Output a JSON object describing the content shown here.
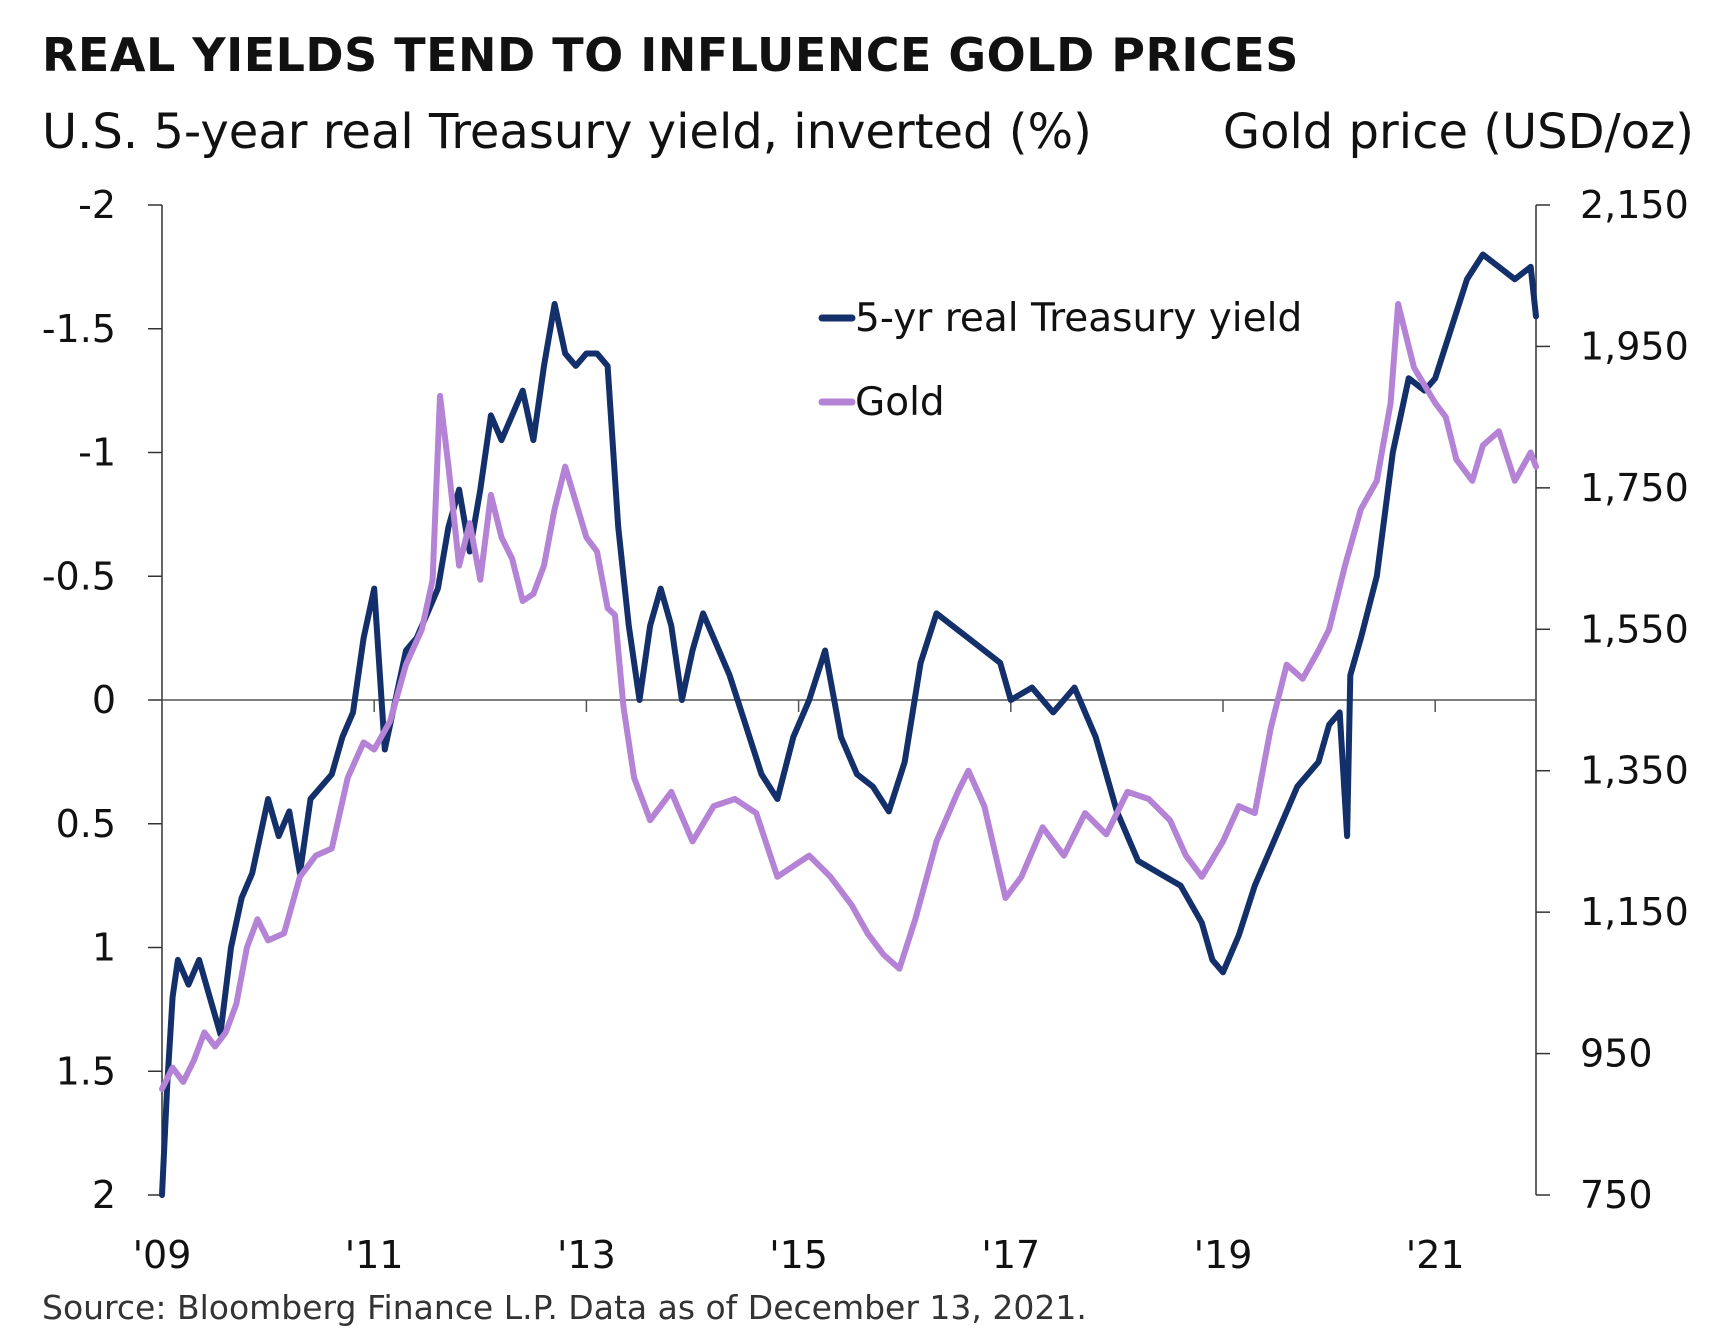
{
  "title": "REAL YIELDS TEND TO INFLUENCE GOLD PRICES",
  "left_axis_title": "U.S. 5-year real Treasury yield, inverted (%)",
  "right_axis_title": "Gold price (USD/oz)",
  "source": "Source: Bloomberg Finance L.P. Data as of December 13, 2021.",
  "colors": {
    "yield": "#14306b",
    "gold": "#b583d6",
    "axis": "#333333",
    "zero_line": "#555555"
  },
  "chart_data": {
    "type": "line",
    "title": "REAL YIELDS TEND TO INFLUENCE GOLD PRICES",
    "x_tick_labels": [
      "'09",
      "'11",
      "'13",
      "'15",
      "'17",
      "'19",
      "'21"
    ],
    "x_ticks": [
      2009,
      2011,
      2013,
      2015,
      2017,
      2019,
      2021
    ],
    "xlim": [
      2009.0,
      2021.95
    ],
    "left_axis": {
      "label": "U.S. 5-year real Treasury yield, inverted (%)",
      "inverted": true,
      "ylim": [
        -2,
        2
      ],
      "ticks": [
        -2,
        -1.5,
        -1,
        -0.5,
        0,
        0.5,
        1,
        1.5,
        2
      ],
      "tick_labels": [
        "-2",
        "-1.5",
        "-1",
        "-0.5",
        "0",
        "0.5",
        "1",
        "1.5",
        "2"
      ]
    },
    "right_axis": {
      "label": "Gold price (USD/oz)",
      "ylim": [
        750,
        2150
      ],
      "ticks": [
        2150,
        1950,
        1750,
        1550,
        1350,
        1150,
        950,
        750
      ],
      "tick_labels": [
        "2,150",
        "1,950",
        "1,750",
        "1,550",
        "1,350",
        "1,150",
        "950",
        "750"
      ]
    },
    "legend": {
      "placement": "top-center"
    },
    "grid": false,
    "series": [
      {
        "name": "5-yr real Treasury yield",
        "axis": "left",
        "x": [
          2009.0,
          2009.05,
          2009.1,
          2009.15,
          2009.25,
          2009.35,
          2009.45,
          2009.55,
          2009.65,
          2009.75,
          2009.85,
          2010.0,
          2010.1,
          2010.2,
          2010.3,
          2010.4,
          2010.5,
          2010.6,
          2010.7,
          2010.8,
          2010.9,
          2011.0,
          2011.1,
          2011.2,
          2011.3,
          2011.4,
          2011.5,
          2011.6,
          2011.7,
          2011.8,
          2011.9,
          2012.0,
          2012.1,
          2012.2,
          2012.3,
          2012.4,
          2012.5,
          2012.6,
          2012.7,
          2012.8,
          2012.9,
          2013.0,
          2013.1,
          2013.2,
          2013.3,
          2013.4,
          2013.5,
          2013.6,
          2013.7,
          2013.8,
          2013.9,
          2014.0,
          2014.1,
          2014.2,
          2014.35,
          2014.5,
          2014.65,
          2014.8,
          2014.95,
          2015.0,
          2015.1,
          2015.25,
          2015.4,
          2015.55,
          2015.7,
          2015.85,
          2016.0,
          2016.15,
          2016.3,
          2016.45,
          2016.6,
          2016.75,
          2016.9,
          2017.0,
          2017.2,
          2017.4,
          2017.6,
          2017.8,
          2018.0,
          2018.2,
          2018.4,
          2018.6,
          2018.8,
          2018.9,
          2019.0,
          2019.15,
          2019.3,
          2019.5,
          2019.7,
          2019.9,
          2020.0,
          2020.1,
          2020.17,
          2020.2,
          2020.3,
          2020.45,
          2020.6,
          2020.75,
          2020.9,
          2021.0,
          2021.15,
          2021.3,
          2021.45,
          2021.6,
          2021.75,
          2021.9,
          2021.95
        ],
        "values": [
          2.0,
          1.55,
          1.2,
          1.05,
          1.15,
          1.05,
          1.2,
          1.35,
          1.0,
          0.8,
          0.7,
          0.4,
          0.55,
          0.45,
          0.7,
          0.4,
          0.35,
          0.3,
          0.15,
          0.05,
          -0.25,
          -0.45,
          0.2,
          0.0,
          -0.2,
          -0.25,
          -0.35,
          -0.45,
          -0.7,
          -0.85,
          -0.6,
          -0.85,
          -1.15,
          -1.05,
          -1.15,
          -1.25,
          -1.05,
          -1.35,
          -1.6,
          -1.4,
          -1.35,
          -1.4,
          -1.4,
          -1.35,
          -0.7,
          -0.3,
          0.0,
          -0.3,
          -0.45,
          -0.3,
          0.0,
          -0.2,
          -0.35,
          -0.25,
          -0.1,
          0.1,
          0.3,
          0.4,
          0.15,
          0.1,
          0.0,
          -0.2,
          0.15,
          0.3,
          0.35,
          0.45,
          0.25,
          -0.15,
          -0.35,
          -0.3,
          -0.25,
          -0.2,
          -0.15,
          0.0,
          -0.05,
          0.05,
          -0.05,
          0.15,
          0.45,
          0.65,
          0.7,
          0.75,
          0.9,
          1.05,
          1.1,
          0.95,
          0.75,
          0.55,
          0.35,
          0.25,
          0.1,
          0.05,
          0.55,
          -0.1,
          -0.25,
          -0.5,
          -1.0,
          -1.3,
          -1.25,
          -1.3,
          -1.5,
          -1.7,
          -1.8,
          -1.75,
          -1.7,
          -1.75,
          -1.55
        ]
      },
      {
        "name": "Gold",
        "axis": "right",
        "x": [
          2009.0,
          2009.1,
          2009.2,
          2009.3,
          2009.4,
          2009.5,
          2009.6,
          2009.7,
          2009.8,
          2009.9,
          2010.0,
          2010.15,
          2010.3,
          2010.45,
          2010.6,
          2010.75,
          2010.9,
          2011.0,
          2011.15,
          2011.3,
          2011.45,
          2011.55,
          2011.62,
          2011.7,
          2011.8,
          2011.9,
          2012.0,
          2012.1,
          2012.2,
          2012.3,
          2012.4,
          2012.5,
          2012.6,
          2012.7,
          2012.8,
          2012.9,
          2013.0,
          2013.1,
          2013.2,
          2013.27,
          2013.35,
          2013.45,
          2013.6,
          2013.8,
          2014.0,
          2014.2,
          2014.4,
          2014.6,
          2014.8,
          2015.0,
          2015.1,
          2015.3,
          2015.5,
          2015.65,
          2015.8,
          2015.95,
          2016.1,
          2016.3,
          2016.5,
          2016.6,
          2016.75,
          2016.95,
          2017.1,
          2017.3,
          2017.5,
          2017.7,
          2017.9,
          2018.1,
          2018.3,
          2018.5,
          2018.65,
          2018.8,
          2019.0,
          2019.15,
          2019.3,
          2019.45,
          2019.6,
          2019.75,
          2019.9,
          2020.0,
          2020.15,
          2020.3,
          2020.45,
          2020.58,
          2020.65,
          2020.8,
          2021.0,
          2021.1,
          2021.2,
          2021.35,
          2021.45,
          2021.6,
          2021.75,
          2021.9,
          2021.95
        ],
        "values": [
          900,
          930,
          910,
          940,
          980,
          960,
          980,
          1020,
          1100,
          1140,
          1110,
          1120,
          1200,
          1230,
          1240,
          1340,
          1390,
          1380,
          1420,
          1500,
          1550,
          1620,
          1880,
          1780,
          1640,
          1700,
          1620,
          1740,
          1680,
          1650,
          1590,
          1600,
          1640,
          1720,
          1780,
          1730,
          1680,
          1660,
          1580,
          1570,
          1440,
          1340,
          1280,
          1320,
          1250,
          1300,
          1310,
          1290,
          1200,
          1220,
          1230,
          1200,
          1160,
          1120,
          1090,
          1070,
          1140,
          1250,
          1320,
          1350,
          1300,
          1170,
          1200,
          1270,
          1230,
          1290,
          1260,
          1320,
          1310,
          1280,
          1230,
          1200,
          1250,
          1300,
          1290,
          1410,
          1500,
          1480,
          1520,
          1550,
          1640,
          1720,
          1760,
          1870,
          2010,
          1920,
          1870,
          1850,
          1790,
          1760,
          1810,
          1830,
          1760,
          1800,
          1780
        ]
      }
    ]
  }
}
